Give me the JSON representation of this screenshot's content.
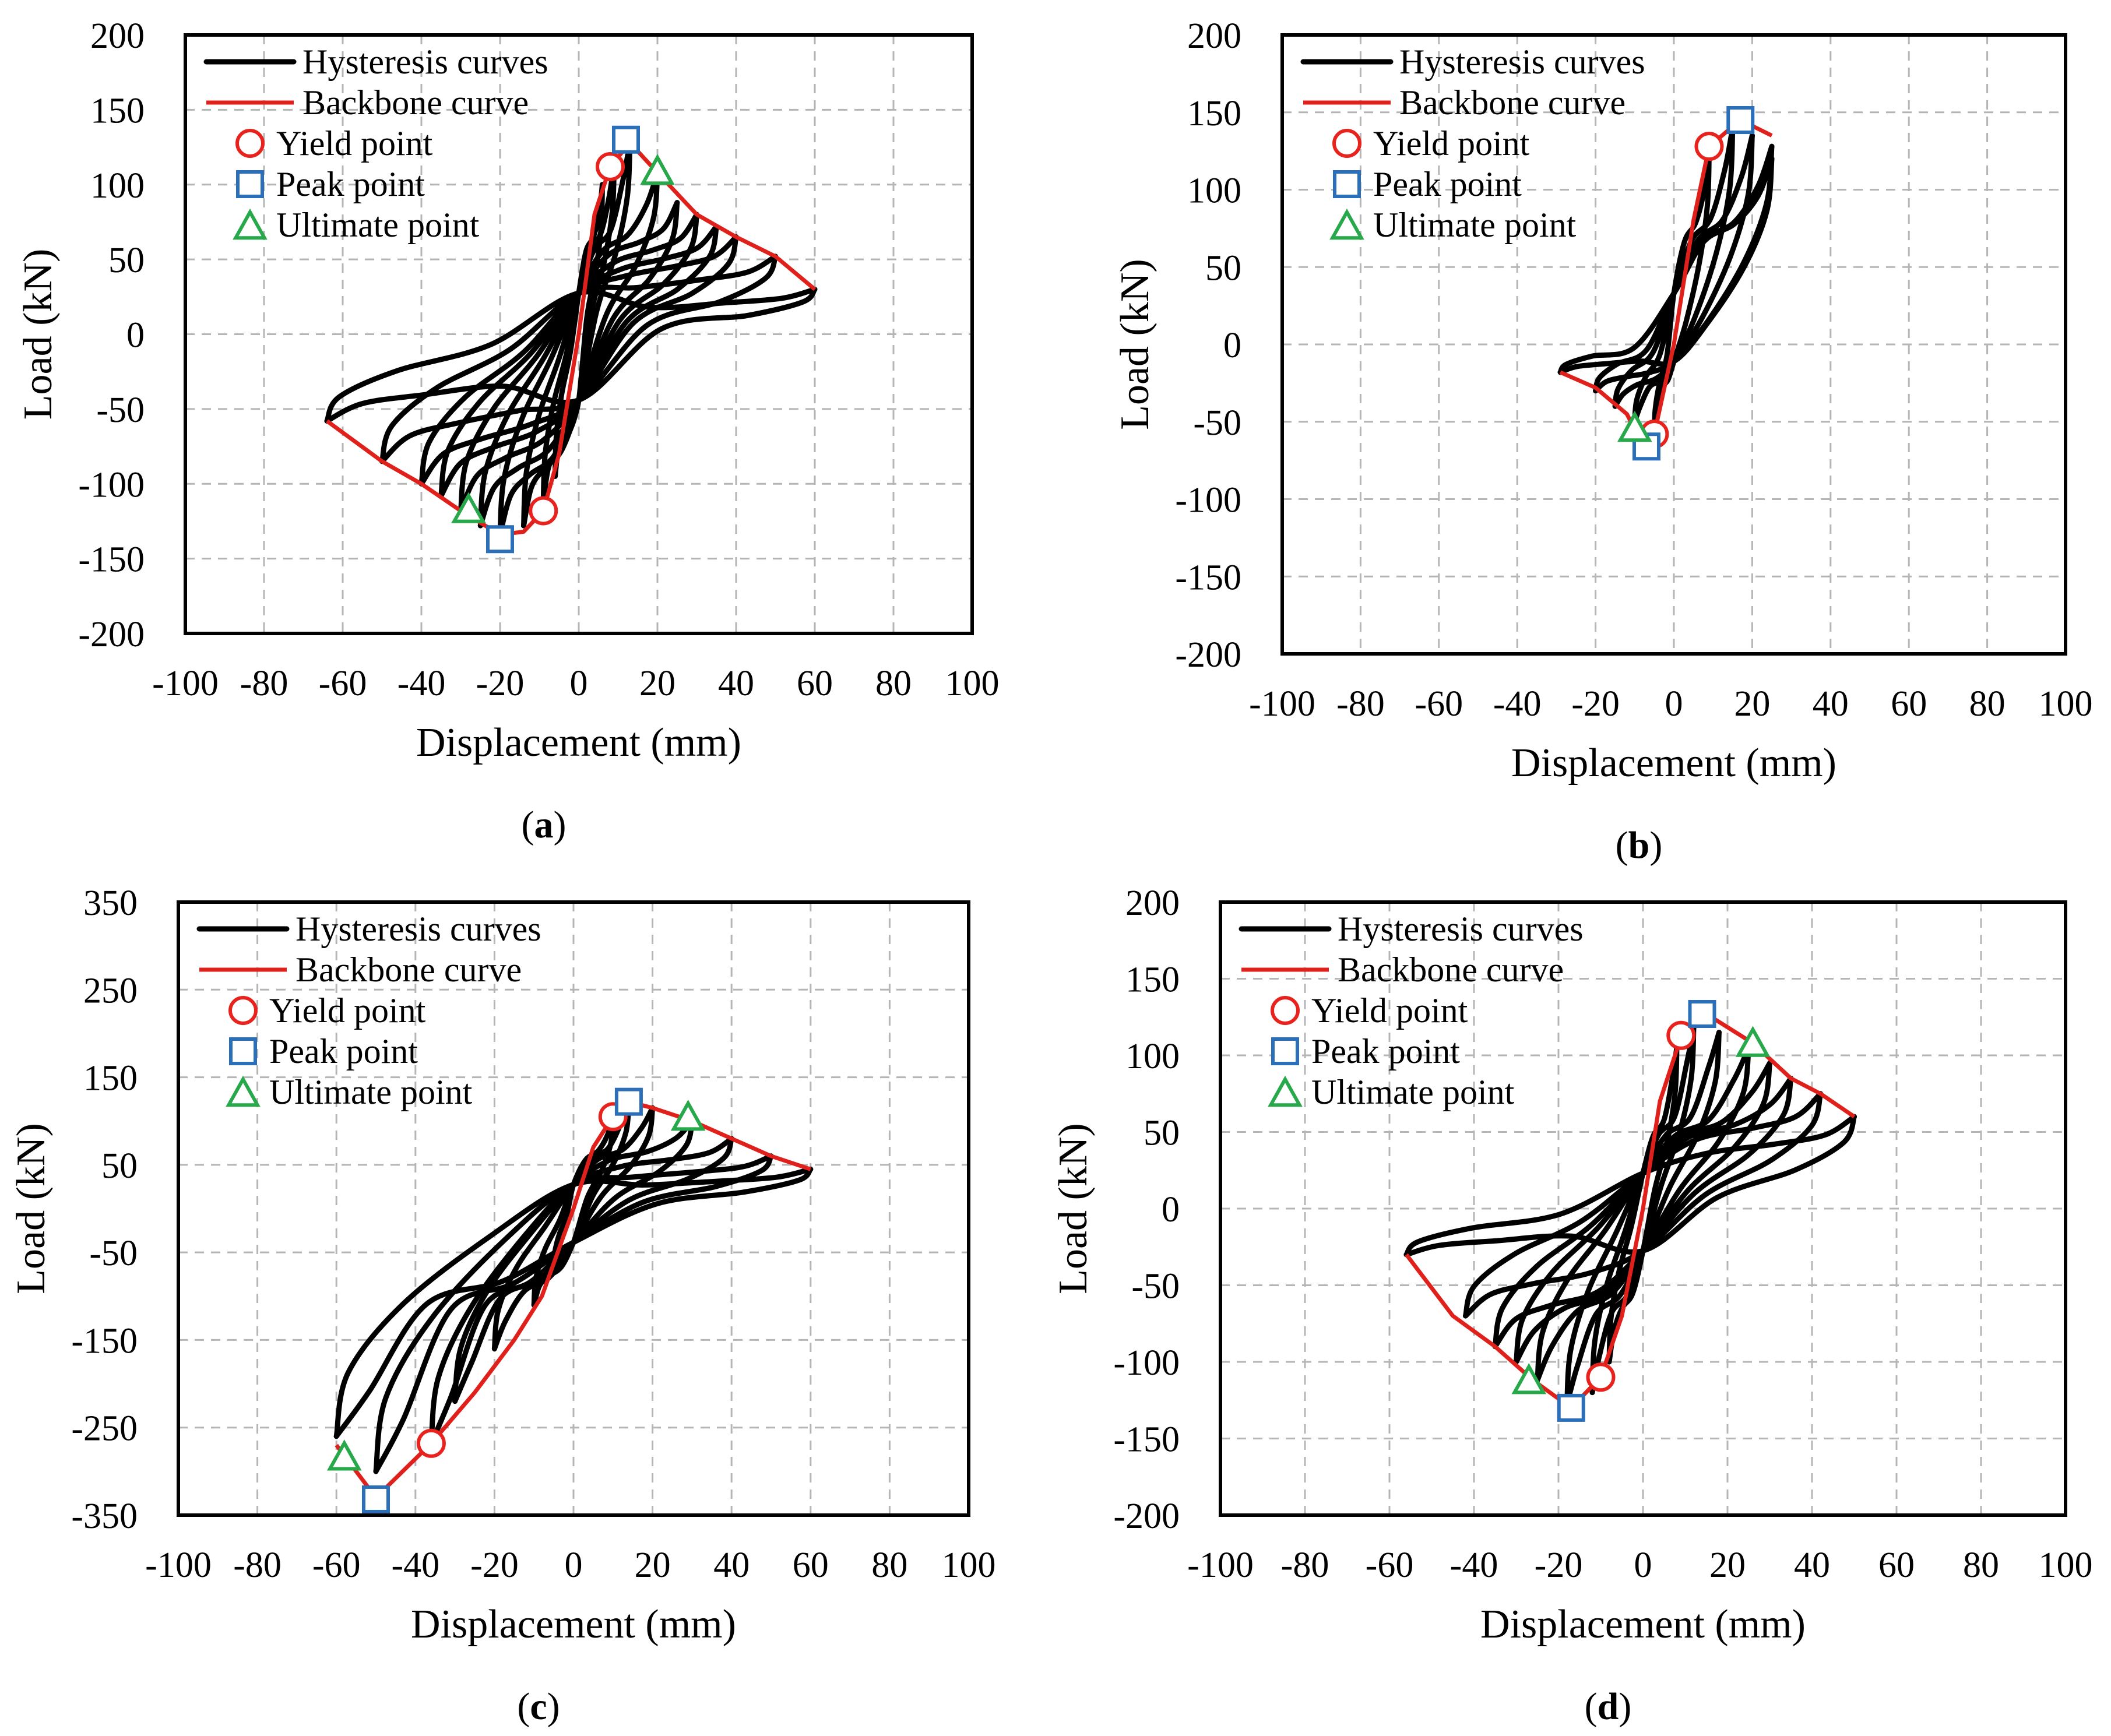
{
  "chart_data": [
    {
      "type": "line",
      "panel_label": "a",
      "xlabel": "Displacement (mm)",
      "ylabel": "Load (kN)",
      "xlim": [
        -100,
        100
      ],
      "ylim": [
        -200,
        200
      ],
      "xticks": [
        "-100",
        "-80",
        "-60",
        "-40",
        "-20",
        "0",
        "20",
        "40",
        "60",
        "80",
        "100"
      ],
      "yticks": [
        "200",
        "150",
        "100",
        "50",
        "0",
        "-50",
        "-100",
        "-150",
        "-200"
      ],
      "grid": true,
      "legend": {
        "position": "top-left",
        "entries": [
          "Hysteresis curves",
          "Backbone curve",
          "Yield point",
          "Peak point",
          "Ultimate point"
        ]
      },
      "hysteresis_amplitudes": [
        {
          "pos": [
            6,
            100
          ],
          "neg": [
            -6,
            -95
          ]
        },
        {
          "pos": [
            9,
            115
          ],
          "neg": [
            -9,
            -112
          ]
        },
        {
          "pos": [
            13,
            128
          ],
          "neg": [
            -14,
            -128
          ]
        },
        {
          "pos": [
            20,
            108
          ],
          "neg": [
            -20,
            -134
          ]
        },
        {
          "pos": [
            25,
            88
          ],
          "neg": [
            -25,
            -128
          ]
        },
        {
          "pos": [
            30,
            80
          ],
          "neg": [
            -30,
            -118
          ]
        },
        {
          "pos": [
            35,
            72
          ],
          "neg": [
            -35,
            -108
          ]
        },
        {
          "pos": [
            40,
            65
          ],
          "neg": [
            -40,
            -100
          ]
        },
        {
          "pos": [
            50,
            52
          ],
          "neg": [
            -50,
            -85
          ]
        },
        {
          "pos": [
            60,
            30
          ],
          "neg": [
            -64,
            -58
          ]
        }
      ],
      "pinch_load": {
        "pos": 50,
        "neg": -80
      },
      "backbone": [
        [
          -64,
          -58
        ],
        [
          -50,
          -85
        ],
        [
          -40,
          -100
        ],
        [
          -30,
          -118
        ],
        [
          -20,
          -134
        ],
        [
          -14,
          -132
        ],
        [
          -9,
          -118
        ],
        [
          -5,
          -80
        ],
        [
          0,
          0
        ],
        [
          4,
          80
        ],
        [
          8,
          112
        ],
        [
          13,
          128
        ],
        [
          20,
          108
        ],
        [
          30,
          80
        ],
        [
          40,
          65
        ],
        [
          50,
          52
        ],
        [
          60,
          30
        ]
      ],
      "yield_points": [
        [
          8,
          112
        ],
        [
          -9,
          -118
        ]
      ],
      "peak_points": [
        [
          12,
          130
        ],
        [
          -20,
          -137
        ]
      ],
      "ultimate_points": [
        [
          20,
          108
        ],
        [
          -28,
          -118
        ]
      ]
    },
    {
      "type": "line",
      "panel_label": "b",
      "xlabel": "Displacement (mm)",
      "ylabel": "Load (kN)",
      "xlim": [
        -100,
        100
      ],
      "ylim": [
        -200,
        200
      ],
      "xticks": [
        "-100",
        "-80",
        "-60",
        "-40",
        "-20",
        "0",
        "20",
        "40",
        "60",
        "80",
        "100"
      ],
      "yticks": [
        "200",
        "150",
        "100",
        "50",
        "0",
        "-50",
        "-100",
        "-150",
        "-200"
      ],
      "grid": true,
      "legend": {
        "position": "top-left",
        "entries": [
          "Hysteresis curves",
          "Backbone curve",
          "Yield point",
          "Peak point",
          "Ultimate point"
        ]
      },
      "hysteresis_amplitudes": [
        {
          "pos": [
            9,
            125
          ],
          "neg": [
            -5,
            -58
          ]
        },
        {
          "pos": [
            15,
            140
          ],
          "neg": [
            -10,
            -50
          ]
        },
        {
          "pos": [
            20,
            135
          ],
          "neg": [
            -15,
            -40
          ]
        },
        {
          "pos": [
            25,
            128
          ],
          "neg": [
            -20,
            -30
          ]
        },
        {
          "pos": [
            25,
            120
          ],
          "neg": [
            -29,
            -18
          ]
        }
      ],
      "pinch_load": {
        "pos": 60,
        "neg": -20
      },
      "backbone": [
        [
          -29,
          -18
        ],
        [
          -20,
          -28
        ],
        [
          -12,
          -45
        ],
        [
          -8,
          -65
        ],
        [
          -5,
          -58
        ],
        [
          0,
          0
        ],
        [
          5,
          80
        ],
        [
          9,
          128
        ],
        [
          17,
          145
        ],
        [
          25,
          135
        ]
      ],
      "yield_points": [
        [
          9,
          128
        ],
        [
          -5,
          -58
        ]
      ],
      "peak_points": [
        [
          17,
          145
        ],
        [
          -7,
          -66
        ]
      ],
      "ultimate_points": [
        [
          -10,
          -55
        ]
      ]
    },
    {
      "type": "line",
      "panel_label": "c",
      "xlabel": "Displacement (mm)",
      "ylabel": "Load (kN)",
      "xlim": [
        -100,
        100
      ],
      "ylim": [
        -350,
        350
      ],
      "xticks": [
        "-100",
        "-80",
        "-60",
        "-40",
        "-20",
        "0",
        "20",
        "40",
        "60",
        "80",
        "100"
      ],
      "yticks": [
        "350",
        "250",
        "150",
        "50",
        "-50",
        "-150",
        "-250",
        "-350"
      ],
      "grid": true,
      "legend": {
        "position": "top-left",
        "entries": [
          "Hysteresis curves",
          "Backbone curve",
          "Yield point",
          "Peak point",
          "Ultimate point"
        ]
      },
      "hysteresis_amplitudes": [
        {
          "pos": [
            10,
            105
          ],
          "neg": [
            -5,
            -70
          ]
        },
        {
          "pos": [
            14,
            122
          ],
          "neg": [
            -10,
            -110
          ]
        },
        {
          "pos": [
            20,
            115
          ],
          "neg": [
            -20,
            -160
          ]
        },
        {
          "pos": [
            30,
            100
          ],
          "neg": [
            -30,
            -220
          ]
        },
        {
          "pos": [
            40,
            80
          ],
          "neg": [
            -36,
            -268
          ]
        },
        {
          "pos": [
            50,
            60
          ],
          "neg": [
            -50,
            -300
          ]
        },
        {
          "pos": [
            60,
            45
          ],
          "neg": [
            -60,
            -260
          ]
        }
      ],
      "pinch_load": {
        "pos": 50,
        "neg": -70
      },
      "backbone": [
        [
          -60,
          -270
        ],
        [
          -50,
          -330
        ],
        [
          -36,
          -268
        ],
        [
          -25,
          -210
        ],
        [
          -15,
          -150
        ],
        [
          -8,
          -100
        ],
        [
          0,
          0
        ],
        [
          5,
          70
        ],
        [
          10,
          105
        ],
        [
          14,
          122
        ],
        [
          20,
          115
        ],
        [
          30,
          100
        ],
        [
          40,
          80
        ],
        [
          50,
          60
        ],
        [
          60,
          45
        ]
      ],
      "yield_points": [
        [
          10,
          105
        ],
        [
          -36,
          -268
        ]
      ],
      "peak_points": [
        [
          14,
          122
        ],
        [
          -50,
          -332
        ]
      ],
      "ultimate_points": [
        [
          29,
          103
        ],
        [
          -58,
          -285
        ]
      ]
    },
    {
      "type": "line",
      "panel_label": "d",
      "xlabel": "Displacement (mm)",
      "ylabel": "Load (kN)",
      "xlim": [
        -100,
        100
      ],
      "ylim": [
        -200,
        200
      ],
      "xticks": [
        "-100",
        "-80",
        "-60",
        "-40",
        "-20",
        "0",
        "20",
        "40",
        "60",
        "80",
        "100"
      ],
      "yticks": [
        "200",
        "150",
        "100",
        "50",
        "0",
        "-50",
        "-100",
        "-150",
        "-200"
      ],
      "grid": true,
      "legend": {
        "position": "top-left",
        "entries": [
          "Hysteresis curves",
          "Backbone curve",
          "Yield point",
          "Peak point",
          "Ultimate point"
        ]
      },
      "hysteresis_amplitudes": [
        {
          "pos": [
            8,
            105
          ],
          "neg": [
            -8,
            -100
          ]
        },
        {
          "pos": [
            12,
            118
          ],
          "neg": [
            -12,
            -120
          ]
        },
        {
          "pos": [
            18,
            115
          ],
          "neg": [
            -18,
            -128
          ]
        },
        {
          "pos": [
            25,
            105
          ],
          "neg": [
            -25,
            -112
          ]
        },
        {
          "pos": [
            30,
            95
          ],
          "neg": [
            -30,
            -100
          ]
        },
        {
          "pos": [
            35,
            85
          ],
          "neg": [
            -35,
            -90
          ]
        },
        {
          "pos": [
            42,
            75
          ],
          "neg": [
            -42,
            -70
          ]
        },
        {
          "pos": [
            50,
            60
          ],
          "neg": [
            -56,
            -30
          ]
        }
      ],
      "pinch_load": {
        "pos": 42,
        "neg": -50
      },
      "backbone": [
        [
          -56,
          -30
        ],
        [
          -45,
          -70
        ],
        [
          -35,
          -90
        ],
        [
          -26,
          -112
        ],
        [
          -17,
          -130
        ],
        [
          -10,
          -110
        ],
        [
          -5,
          -70
        ],
        [
          0,
          0
        ],
        [
          4,
          70
        ],
        [
          9,
          112
        ],
        [
          15,
          127
        ],
        [
          26,
          108
        ],
        [
          35,
          85
        ],
        [
          42,
          75
        ],
        [
          50,
          60
        ]
      ],
      "yield_points": [
        [
          9,
          113
        ],
        [
          -10,
          -110
        ]
      ],
      "peak_points": [
        [
          14,
          127
        ],
        [
          -17,
          -130
        ]
      ],
      "ultimate_points": [
        [
          26,
          107
        ],
        [
          -27,
          -113
        ]
      ]
    }
  ]
}
